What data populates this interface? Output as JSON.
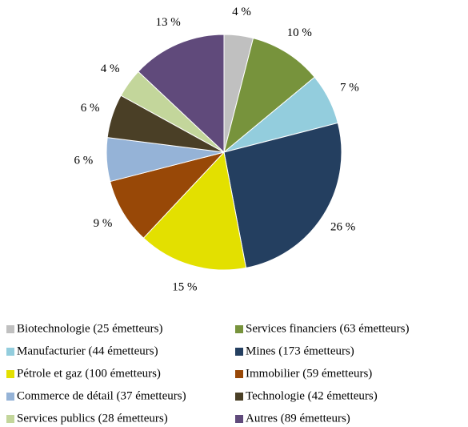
{
  "chart_data": {
    "type": "pie",
    "categories": [
      "Biotechnologie (25 émetteurs)",
      "Services financiers (63 émetteurs)",
      "Manufacturier (44 émetteurs)",
      "Mines (173 émetteurs)",
      "Pétrole et gaz (100 émetteurs)",
      "Immobilier (59 émetteurs)",
      "Commerce de détail (37 émetteurs)",
      "Technologie (42 émetteurs)",
      "Services publics (28 émetteurs)",
      "Autres (89 émetteurs)"
    ],
    "values": [
      4,
      10,
      7,
      26,
      15,
      9,
      6,
      6,
      4,
      13
    ],
    "value_labels": [
      "4 %",
      "10 %",
      "7 %",
      "26 %",
      "15 %",
      "9 %",
      "6 %",
      "6 %",
      "4 %",
      "13 %"
    ],
    "colors": [
      "#c0c0c0",
      "#77933c",
      "#93cddd",
      "#243f60",
      "#e3e000",
      "#984807",
      "#95b3d7",
      "#4a3f26",
      "#c3d69b",
      "#604a7b"
    ]
  }
}
